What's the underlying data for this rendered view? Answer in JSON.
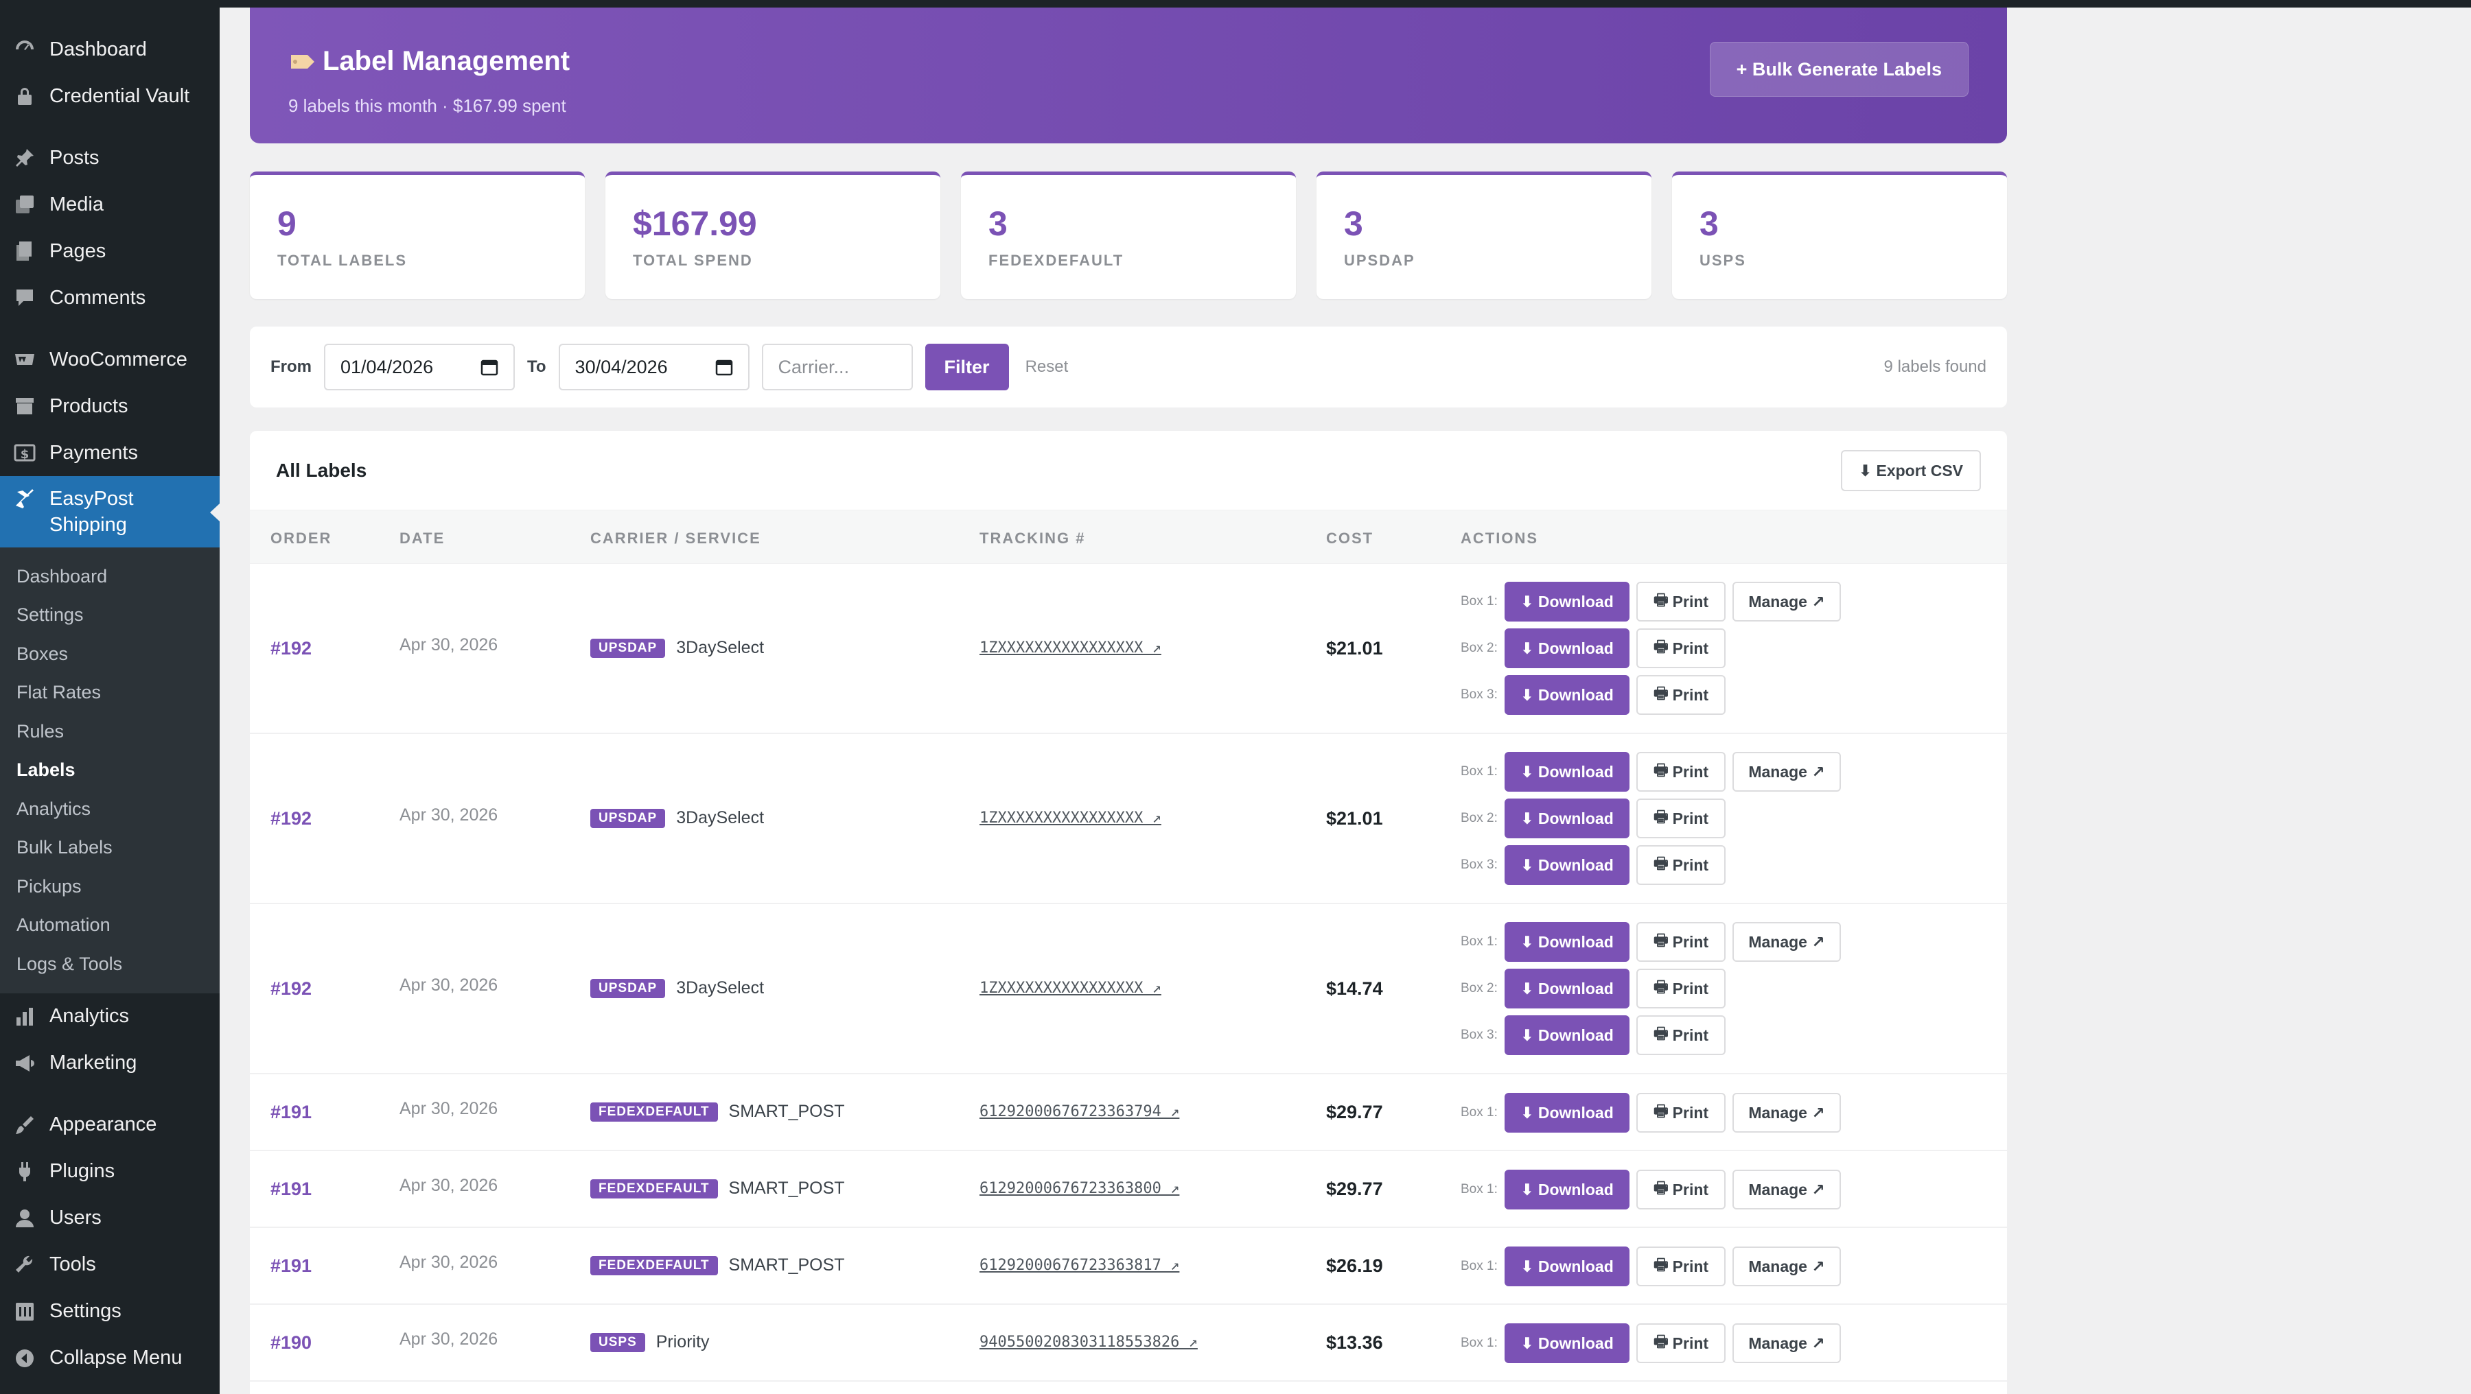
{
  "sidebar": {
    "items_top": [
      {
        "label": "Dashboard",
        "icon": "dashboard-icon"
      },
      {
        "label": "Credential Vault",
        "icon": "lock-icon"
      }
    ],
    "items_content": [
      {
        "label": "Posts",
        "icon": "pin-icon"
      },
      {
        "label": "Media",
        "icon": "media-icon"
      },
      {
        "label": "Pages",
        "icon": "pages-icon"
      },
      {
        "label": "Comments",
        "icon": "comment-icon"
      }
    ],
    "items_shop": [
      {
        "label": "WooCommerce",
        "icon": "woo-icon"
      },
      {
        "label": "Products",
        "icon": "archive-icon"
      },
      {
        "label": "Payments",
        "icon": "dollar-icon"
      }
    ],
    "active": {
      "label_line1": "EasyPost",
      "label_line2": "Shipping",
      "icon": "plane-icon"
    },
    "submenu": [
      "Dashboard",
      "Settings",
      "Boxes",
      "Flat Rates",
      "Rules",
      "Labels",
      "Analytics",
      "Bulk Labels",
      "Pickups",
      "Automation",
      "Logs & Tools"
    ],
    "submenu_current": "Labels",
    "items_bottom1": [
      {
        "label": "Analytics",
        "icon": "bar-chart-icon"
      },
      {
        "label": "Marketing",
        "icon": "megaphone-icon"
      }
    ],
    "items_bottom2": [
      {
        "label": "Appearance",
        "icon": "brush-icon"
      },
      {
        "label": "Plugins",
        "icon": "plug-icon"
      },
      {
        "label": "Users",
        "icon": "user-icon"
      },
      {
        "label": "Tools",
        "icon": "wrench-icon"
      },
      {
        "label": "Settings",
        "icon": "settings-icon"
      },
      {
        "label": "Collapse Menu",
        "icon": "collapse-icon"
      }
    ]
  },
  "hero": {
    "title": "Label Management",
    "subtitle": "9 labels this month · $167.99 spent",
    "bulk_button": "+ Bulk Generate Labels"
  },
  "stats": [
    {
      "value": "9",
      "label": "TOTAL LABELS"
    },
    {
      "value": "$167.99",
      "label": "TOTAL SPEND"
    },
    {
      "value": "3",
      "label": "FEDEXDEFAULT"
    },
    {
      "value": "3",
      "label": "UPSDAP"
    },
    {
      "value": "3",
      "label": "USPS"
    }
  ],
  "filter": {
    "from_label": "From",
    "from_value": "01/04/2026",
    "to_label": "To",
    "to_value": "30/04/2026",
    "carrier_placeholder": "Carrier...",
    "filter_button": "Filter",
    "reset": "Reset",
    "found": "9 labels found"
  },
  "table": {
    "title": "All Labels",
    "export_button": "⬇ Export CSV",
    "headers": [
      "ORDER",
      "DATE",
      "CARRIER / SERVICE",
      "TRACKING #",
      "COST",
      "ACTIONS"
    ],
    "download_label": "⬇ Download",
    "print_label": "Print",
    "manage_label": "Manage ↗",
    "rows": [
      {
        "order": "#192",
        "date": "Apr 30, 2026",
        "carrier": "UPSDAP",
        "service": "3DaySelect",
        "tracking": "1ZXXXXXXXXXXXXXXXX ↗",
        "cost": "$21.01",
        "boxes": [
          "Box 1:",
          "Box 2:",
          "Box 3:"
        ]
      },
      {
        "order": "#192",
        "date": "Apr 30, 2026",
        "carrier": "UPSDAP",
        "service": "3DaySelect",
        "tracking": "1ZXXXXXXXXXXXXXXXX ↗",
        "cost": "$21.01",
        "boxes": [
          "Box 1:",
          "Box 2:",
          "Box 3:"
        ]
      },
      {
        "order": "#192",
        "date": "Apr 30, 2026",
        "carrier": "UPSDAP",
        "service": "3DaySelect",
        "tracking": "1ZXXXXXXXXXXXXXXXX ↗",
        "cost": "$14.74",
        "boxes": [
          "Box 1:",
          "Box 2:",
          "Box 3:"
        ]
      },
      {
        "order": "#191",
        "date": "Apr 30, 2026",
        "carrier": "FEDEXDEFAULT",
        "service": "SMART_POST",
        "tracking": "61292000676723363794 ↗",
        "cost": "$29.77",
        "boxes": [
          "Box 1:"
        ]
      },
      {
        "order": "#191",
        "date": "Apr 30, 2026",
        "carrier": "FEDEXDEFAULT",
        "service": "SMART_POST",
        "tracking": "61292000676723363800 ↗",
        "cost": "$29.77",
        "boxes": [
          "Box 1:"
        ]
      },
      {
        "order": "#191",
        "date": "Apr 30, 2026",
        "carrier": "FEDEXDEFAULT",
        "service": "SMART_POST",
        "tracking": "61292000676723363817 ↗",
        "cost": "$26.19",
        "boxes": [
          "Box 1:"
        ]
      },
      {
        "order": "#190",
        "date": "Apr 30, 2026",
        "carrier": "USPS",
        "service": "Priority",
        "tracking": "9405500208303118553826 ↗",
        "cost": "$13.36",
        "boxes": [
          "Box 1:"
        ]
      }
    ]
  },
  "colors": {
    "accent": "#7b52b5",
    "sidebar_bg": "#1d2327",
    "active_menu": "#2271b1"
  }
}
